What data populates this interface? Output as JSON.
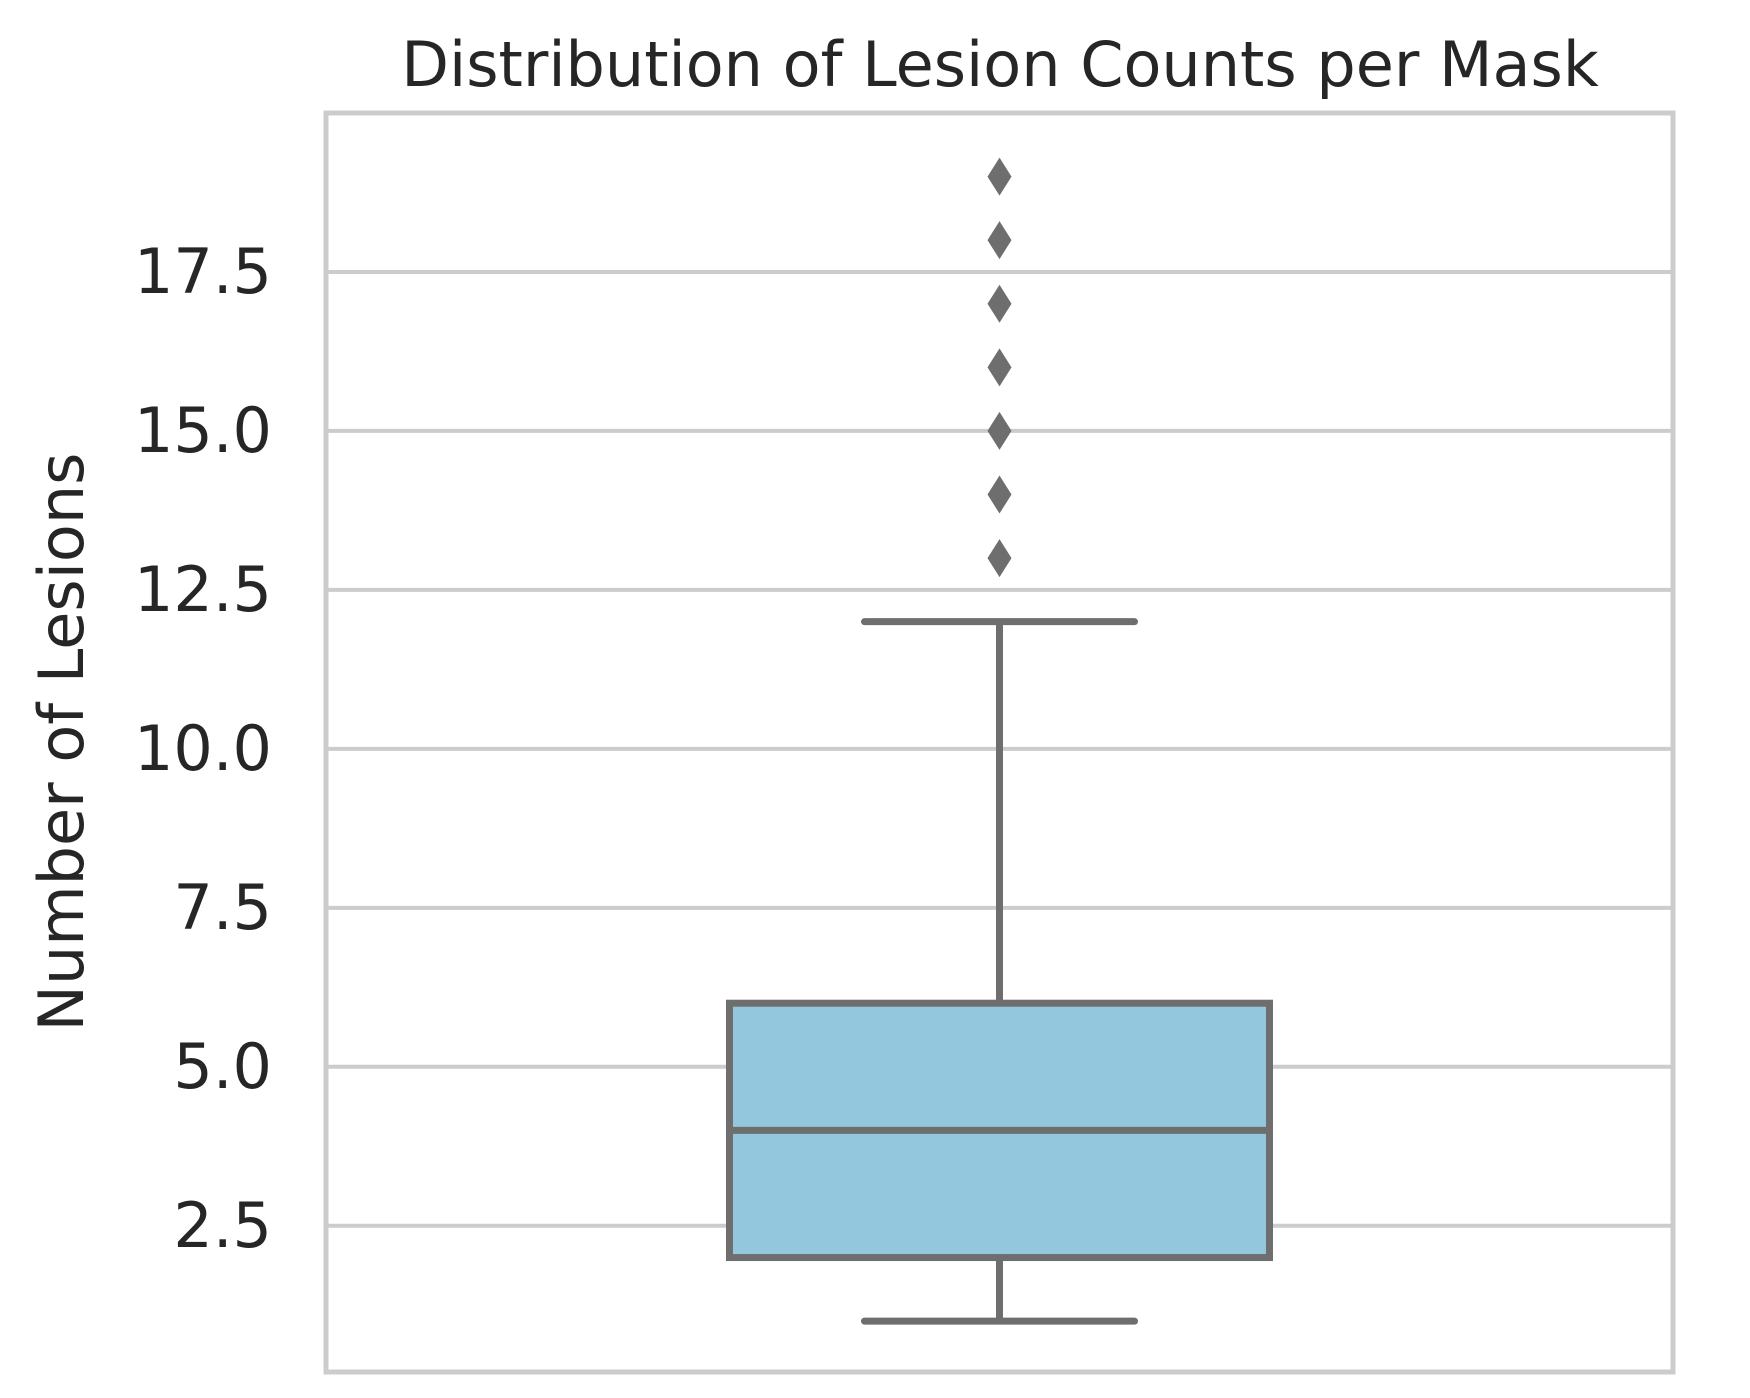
{
  "chart_data": {
    "type": "box",
    "title": "Distribution of Lesion Counts per Mask",
    "ylabel": "Number of Lesions",
    "xlabel": "",
    "ylim": [
      0.2,
      20.0
    ],
    "yticks": [
      2.5,
      5.0,
      7.5,
      10.0,
      12.5,
      15.0,
      17.5
    ],
    "ytick_labels": [
      "2.5",
      "5.0",
      "7.5",
      "10.0",
      "12.5",
      "15.0",
      "17.5"
    ],
    "grid": true,
    "box": {
      "whisker_low": 1,
      "q1": 2,
      "median": 4,
      "q3": 6,
      "whisker_high": 12,
      "outliers": [
        13,
        14,
        15,
        16,
        17,
        18,
        19
      ]
    },
    "colors": {
      "box_fill": "#92c7dd",
      "box_line": "#6e6e6e",
      "grid": "#cccccc",
      "text": "#262626"
    }
  }
}
